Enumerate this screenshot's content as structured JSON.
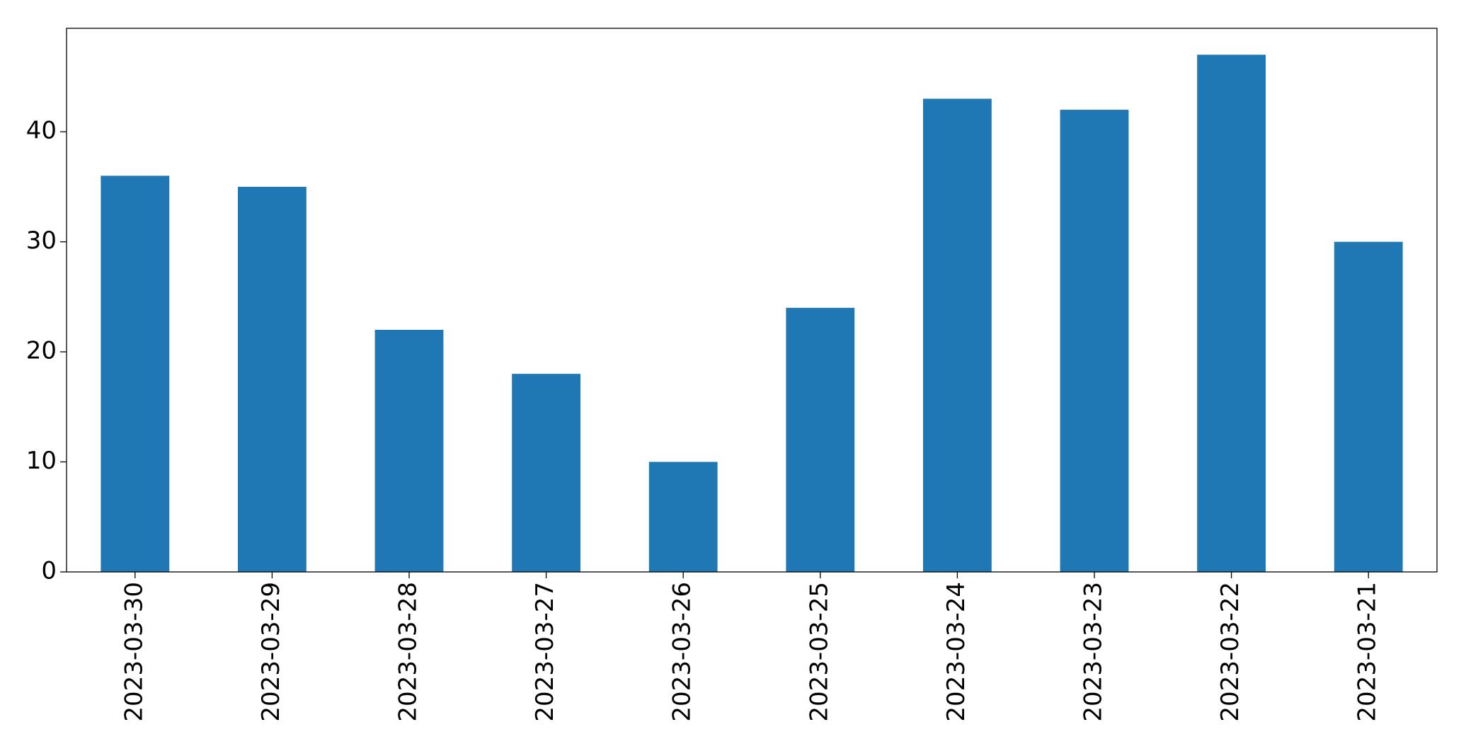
{
  "chart_data": {
    "type": "bar",
    "categories": [
      "2023-03-30",
      "2023-03-29",
      "2023-03-28",
      "2023-03-27",
      "2023-03-26",
      "2023-03-25",
      "2023-03-24",
      "2023-03-23",
      "2023-03-22",
      "2023-03-21"
    ],
    "values": [
      36,
      35,
      22,
      18,
      10,
      24,
      43,
      42,
      47,
      30
    ],
    "color": "#1f77b4",
    "ylim": [
      0,
      49.4
    ],
    "yticks": [
      0,
      10,
      20,
      30,
      40
    ],
    "grid": false
  }
}
